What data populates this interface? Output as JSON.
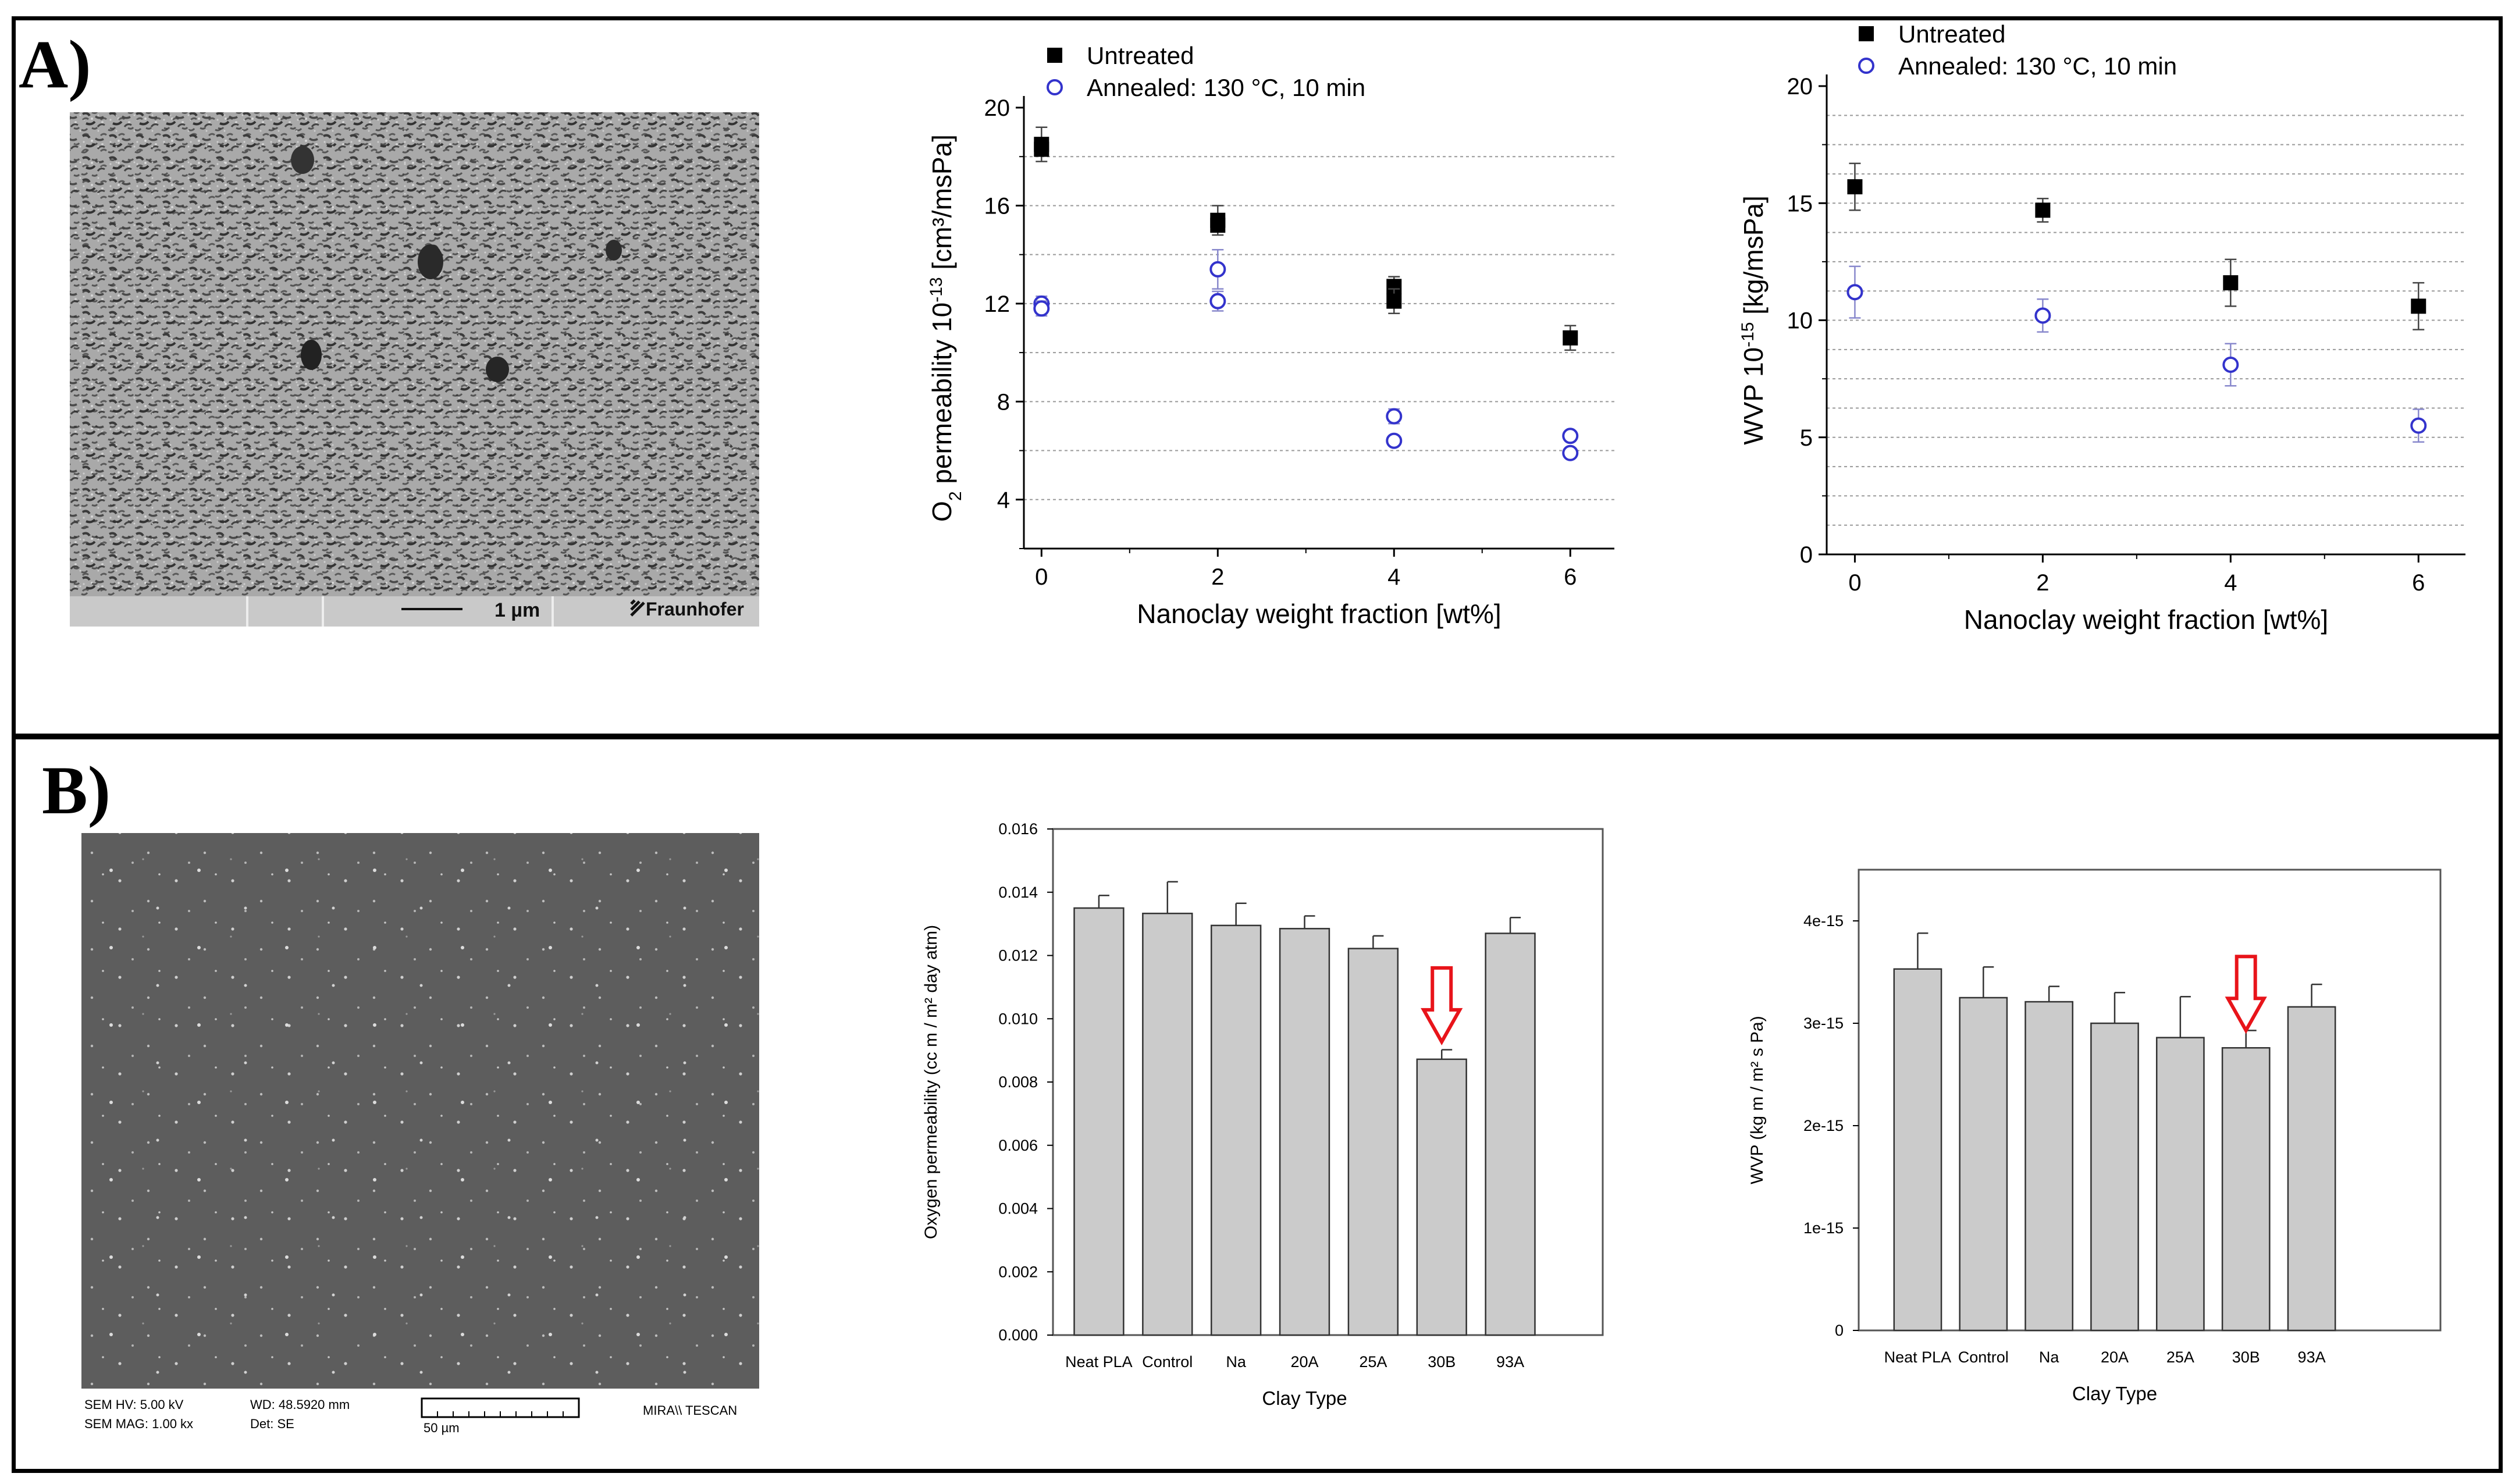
{
  "panel_labels": {
    "a": "A)",
    "b": "B)"
  },
  "sem_a": {
    "scale_label": "1 µm",
    "logo_text": "Fraunhofer"
  },
  "sem_b": {
    "info_line1": "SEM HV: 5.00 kV",
    "info_line2": "SEM MAG: 1.00 kx",
    "wd": "WD: 48.5920 mm",
    "det": "Det: SE",
    "scale": "50 µm",
    "brand": "MIRA\\\\ TESCAN"
  },
  "chart_data": [
    {
      "id": "a1",
      "type": "scatter",
      "ylabel_main": "O",
      "ylabel_sub": "2",
      "ylabel_rest": " permeability 10",
      "ylabel_exp": "-13",
      "ylabel_unit": " [cm³/msPa]",
      "xlabel": "Nanoclay weight fraction [wt%]",
      "x_ticks": [
        "0",
        "2",
        "4",
        "6"
      ],
      "y_ticks": [
        "4",
        "8",
        "12",
        "16",
        "20"
      ],
      "xlim": [
        -0.2,
        6.5
      ],
      "ylim": [
        2,
        20
      ],
      "legend": [
        "Untreated",
        "Annealed: 130 °C, 10 min"
      ],
      "series": [
        {
          "name": "Untreated",
          "marker": "square",
          "color": "#000000",
          "points": [
            [
              0,
              18.5,
              0.7
            ],
            [
              0,
              18.3,
              0
            ],
            [
              2,
              15.4,
              0.6
            ],
            [
              2,
              15.2,
              0
            ],
            [
              4,
              12.7,
              0.4
            ],
            [
              4,
              12.1,
              0.5
            ],
            [
              6,
              10.6,
              0.5
            ]
          ]
        },
        {
          "name": "Annealed: 130 °C, 10 min",
          "marker": "circle",
          "color": "#3333cc",
          "points": [
            [
              0,
              12.0,
              0.3
            ],
            [
              0,
              11.8,
              0.3
            ],
            [
              2,
              13.4,
              0.8
            ],
            [
              2,
              12.1,
              0.4
            ],
            [
              4,
              7.4,
              0.3
            ],
            [
              4,
              6.4,
              0
            ],
            [
              6,
              6.6,
              0
            ],
            [
              6,
              5.9,
              0
            ]
          ]
        }
      ]
    },
    {
      "id": "a2",
      "type": "scatter",
      "ylabel_main": "WVP 10",
      "ylabel_exp": "-15",
      "ylabel_unit": " [kg/msPa]",
      "xlabel": "Nanoclay weight fraction [wt%]",
      "x_ticks": [
        "0",
        "2",
        "4",
        "6"
      ],
      "y_ticks": [
        "0",
        "5",
        "10",
        "15",
        "20"
      ],
      "xlim": [
        -0.3,
        6.5
      ],
      "ylim": [
        0,
        20
      ],
      "legend": [
        "Untreated",
        "Annealed: 130 °C, 10 min"
      ],
      "series": [
        {
          "name": "Untreated",
          "marker": "square",
          "color": "#000000",
          "points": [
            [
              0,
              15.7,
              1.0
            ],
            [
              2,
              14.7,
              0.5
            ],
            [
              4,
              11.6,
              1.0
            ],
            [
              6,
              10.6,
              1.0
            ]
          ]
        },
        {
          "name": "Annealed: 130 °C, 10 min",
          "marker": "circle",
          "color": "#3333cc",
          "points": [
            [
              0,
              11.2,
              1.1
            ],
            [
              2,
              10.2,
              0.7
            ],
            [
              4,
              8.1,
              0.9
            ],
            [
              6,
              5.5,
              0.7
            ]
          ]
        }
      ]
    },
    {
      "id": "b1",
      "type": "bar",
      "ylabel": "Oxygen permeability (cc m / m² day atm)",
      "xlabel": "Clay Type",
      "categories": [
        "Neat PLA",
        "Control",
        "Na",
        "20A",
        "25A",
        "30B",
        "93A"
      ],
      "values": [
        0.0135,
        0.01333,
        0.01295,
        0.01285,
        0.01222,
        0.00872,
        0.0127
      ],
      "errors": [
        0.0004,
        0.001,
        0.0007,
        0.0004,
        0.0004,
        0.0003,
        0.0005
      ],
      "y_ticks": [
        "0.000",
        "0.002",
        "0.004",
        "0.006",
        "0.008",
        "0.010",
        "0.012",
        "0.014",
        "0.016"
      ],
      "ylim": [
        0,
        0.016
      ],
      "highlight": "30B"
    },
    {
      "id": "b2",
      "type": "bar",
      "ylabel": "WVP (kg m / m² s Pa)",
      "xlabel": "Clay Type",
      "categories": [
        "Neat PLA",
        "Control",
        "Na",
        "20A",
        "25A",
        "30B",
        "93A"
      ],
      "values": [
        3.53,
        3.25,
        3.21,
        3.0,
        2.86,
        2.76,
        3.16
      ],
      "errors": [
        0.35,
        0.3,
        0.15,
        0.3,
        0.4,
        0.17,
        0.22
      ],
      "y_ticks": [
        "0",
        "1e-15",
        "2e-15",
        "3e-15",
        "4e-15"
      ],
      "ylim": [
        0,
        4.5
      ],
      "ylim_units": "1e-15",
      "highlight": "30B"
    }
  ]
}
